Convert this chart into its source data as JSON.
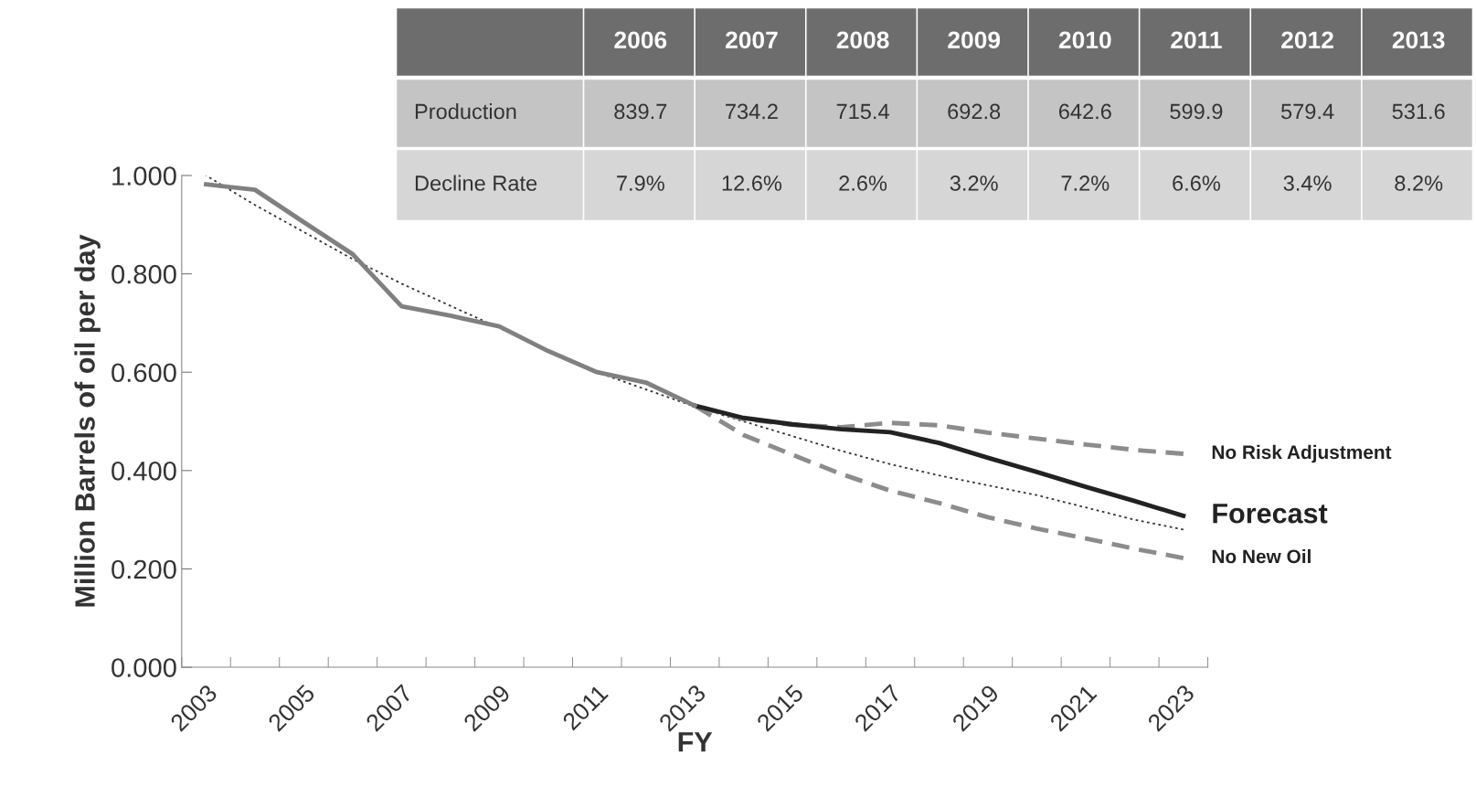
{
  "chart_data": {
    "type": "line",
    "xlabel": "FY",
    "ylabel": "Million Barrels of oil per day",
    "categories": [
      "2003",
      null,
      "2005",
      null,
      "2007",
      null,
      "2009",
      null,
      "2011",
      null,
      "2013",
      null,
      "2015",
      null,
      "2017",
      null,
      "2019",
      null,
      "2021",
      null,
      "2023"
    ],
    "ylim": [
      0,
      1.0
    ],
    "yticks": [
      {
        "value": 0,
        "label": "0.000"
      },
      {
        "value": 0.2,
        "label": "0.200"
      },
      {
        "value": 0.4,
        "label": "0.400"
      },
      {
        "value": 0.6,
        "label": "0.600"
      },
      {
        "value": 0.8,
        "label": "0.800"
      },
      {
        "value": 1.0,
        "label": "1.000"
      }
    ],
    "grid": false,
    "legend": false,
    "marker": "none",
    "series": [
      {
        "color": "#333333",
        "line_style": "dotted",
        "values": [
          1.0,
          0.94,
          0.885,
          0.83,
          0.78,
          0.735,
          0.69,
          0.645,
          0.6,
          0.565,
          0.53,
          0.5,
          0.47,
          0.44,
          0.413,
          0.39,
          0.37,
          0.35,
          0.325,
          0.3,
          0.28
        ]
      },
      {
        "name": "No Risk Adjustment",
        "color": "#8c8c8c",
        "line_style": "dashed",
        "values": [
          null,
          null,
          null,
          null,
          null,
          null,
          null,
          null,
          null,
          null,
          0.532,
          0.505,
          0.493,
          0.488,
          0.497,
          0.492,
          0.477,
          0.465,
          0.453,
          0.442,
          0.434
        ]
      },
      {
        "name": "No New Oil",
        "color": "#8c8c8c",
        "line_style": "dashed",
        "values": [
          null,
          null,
          null,
          null,
          null,
          null,
          null,
          null,
          null,
          null,
          0.532,
          0.472,
          0.432,
          0.393,
          0.359,
          0.334,
          0.305,
          0.282,
          0.262,
          0.241,
          0.222
        ]
      },
      {
        "name": "Forecast",
        "color": "#222222",
        "line_style": "solid",
        "values": [
          null,
          null,
          null,
          null,
          null,
          null,
          null,
          null,
          null,
          null,
          0.532,
          0.507,
          0.494,
          0.484,
          0.478,
          0.456,
          0.426,
          0.397,
          0.367,
          0.338,
          0.308
        ]
      },
      {
        "color": "#808080",
        "line_style": "solid",
        "values": [
          0.982,
          0.971,
          0.905,
          0.84,
          0.734,
          0.715,
          0.693,
          0.643,
          0.6,
          0.579,
          0.532,
          null,
          null,
          null,
          null,
          null,
          null,
          null,
          null,
          null,
          null
        ]
      }
    ],
    "annotations": [
      "Production",
      "Decline Rate",
      "2006",
      "2007",
      "2008",
      "2009",
      "2010",
      "2011",
      "2012",
      "2013",
      "839.7",
      "734.2",
      "715.4",
      "692.8",
      "642.6",
      "599.9",
      "579.4",
      "531.6",
      "7.9%",
      "12.6%",
      "2.6%",
      "3.2%",
      "7.2%",
      "6.6%",
      "3.4%",
      "8.2%"
    ]
  }
}
